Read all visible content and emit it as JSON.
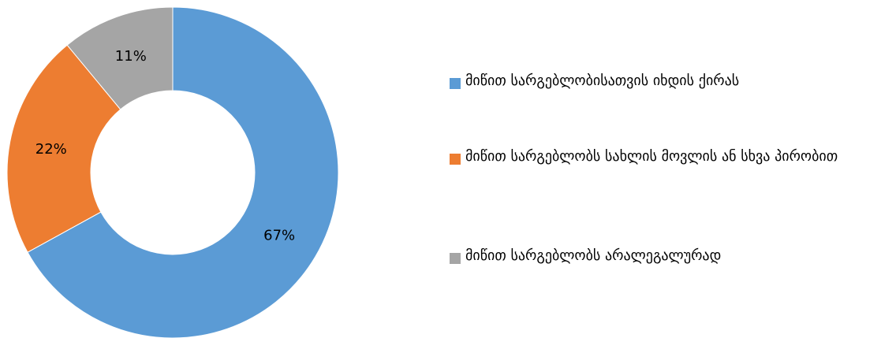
{
  "chart_data": {
    "type": "pie",
    "donut": true,
    "title": "",
    "legend_position": "right",
    "slices": [
      {
        "label": "მიწით სარგებლობისათვის იხდის ქირას",
        "value": 67,
        "display": "67%",
        "color": "#5b9bd5"
      },
      {
        "label": "მიწით სარგებლობს სახლის მოვლის ან სხვა პირობით",
        "value": 22,
        "display": "22%",
        "color": "#ed7d31"
      },
      {
        "label": "მიწით სარგებლობს არალეგალურად",
        "value": 11,
        "display": "11%",
        "color": "#a5a5a5"
      }
    ]
  }
}
